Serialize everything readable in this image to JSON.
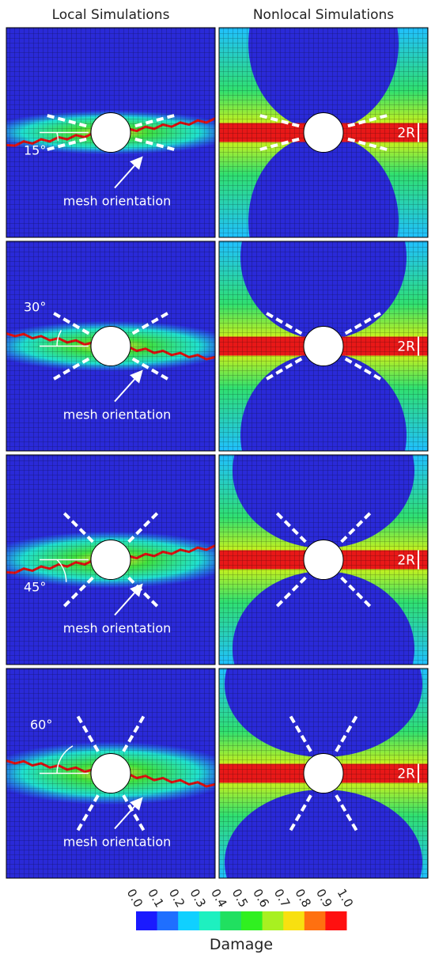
{
  "headers": [
    "Local Simulations",
    "Nonlocal Simulations"
  ],
  "rows": [
    {
      "angle": "15°",
      "annotation": "mesh orientation",
      "nonlocal_label": "2R"
    },
    {
      "angle": "30°",
      "annotation": "mesh orientation",
      "nonlocal_label": "2R"
    },
    {
      "angle": "45°",
      "annotation": "mesh orientation",
      "nonlocal_label": "2R"
    },
    {
      "angle": "60°",
      "annotation": "mesh orientation",
      "nonlocal_label": "2R"
    }
  ],
  "colorbar": {
    "ticks": [
      "0.0",
      "0.1",
      "0.2",
      "0.3",
      "0.4",
      "0.5",
      "0.6",
      "0.7",
      "0.8",
      "0.9",
      "1.0"
    ],
    "colors": [
      "#1a1aff",
      "#1f6fff",
      "#10d0ff",
      "#1ef0c0",
      "#20e060",
      "#30f020",
      "#a8f020",
      "#f8e010",
      "#ff7010",
      "#ff1010"
    ],
    "label": "Damage"
  }
}
